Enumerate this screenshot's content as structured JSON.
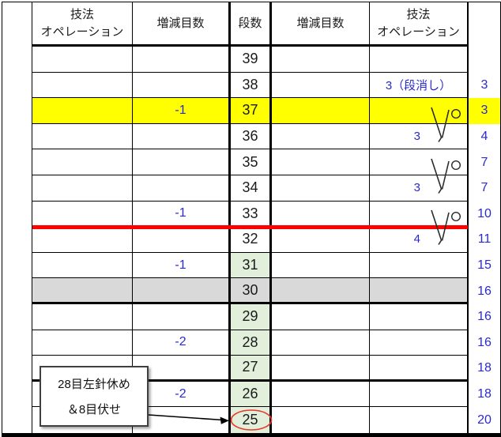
{
  "table": {
    "headers": {
      "technique_left_line1": "技法",
      "technique_left_line2": "オペレーション",
      "decrease_left": "増減目数",
      "row_count": "段数",
      "decrease_right": "増減目数",
      "technique_right_line1": "技法",
      "technique_right_line2": "オペレーション"
    },
    "rows": [
      {
        "row_no": "39",
        "dec_left": "",
        "dec_right": "",
        "technique_right": "",
        "count_right": "",
        "row_bg": "",
        "rowno_bg": "",
        "thick_bottom": false,
        "tech_align": "center",
        "circled": false
      },
      {
        "row_no": "38",
        "dec_left": "",
        "dec_right": "",
        "technique_right": "3（段消し）",
        "count_right": "3",
        "row_bg": "",
        "rowno_bg": "",
        "thick_bottom": false,
        "tech_align": "center",
        "circled": false
      },
      {
        "row_no": "37",
        "dec_left": "-1",
        "dec_right": "",
        "technique_right": "",
        "count_right": "3",
        "row_bg": "yellow",
        "rowno_bg": "",
        "thick_bottom": false,
        "tech_align": "center",
        "circled": false
      },
      {
        "row_no": "36",
        "dec_left": "",
        "dec_right": "",
        "technique_right": "3",
        "count_right": "4",
        "row_bg": "",
        "rowno_bg": "",
        "thick_bottom": false,
        "tech_align": "right",
        "circled": false
      },
      {
        "row_no": "35",
        "dec_left": "",
        "dec_right": "",
        "technique_right": "",
        "count_right": "7",
        "row_bg": "",
        "rowno_bg": "",
        "thick_bottom": false,
        "tech_align": "center",
        "circled": false
      },
      {
        "row_no": "34",
        "dec_left": "",
        "dec_right": "",
        "technique_right": "3",
        "count_right": "7",
        "row_bg": "",
        "rowno_bg": "",
        "thick_bottom": false,
        "tech_align": "right",
        "circled": false
      },
      {
        "row_no": "33",
        "dec_left": "-1",
        "dec_right": "",
        "technique_right": "",
        "count_right": "10",
        "row_bg": "",
        "rowno_bg": "",
        "thick_bottom": false,
        "tech_align": "center",
        "circled": false
      },
      {
        "row_no": "32",
        "dec_left": "",
        "dec_right": "",
        "technique_right": "4",
        "count_right": "11",
        "row_bg": "",
        "rowno_bg": "",
        "thick_bottom": false,
        "tech_align": "right",
        "circled": false
      },
      {
        "row_no": "31",
        "dec_left": "-1",
        "dec_right": "",
        "technique_right": "",
        "count_right": "15",
        "row_bg": "",
        "rowno_bg": "green",
        "thick_bottom": false,
        "tech_align": "center",
        "circled": false
      },
      {
        "row_no": "30",
        "dec_left": "",
        "dec_right": "",
        "technique_right": "",
        "count_right": "16",
        "row_bg": "gray",
        "rowno_bg": "gray",
        "thick_bottom": true,
        "tech_align": "center",
        "circled": false
      },
      {
        "row_no": "29",
        "dec_left": "",
        "dec_right": "",
        "technique_right": "",
        "count_right": "16",
        "row_bg": "",
        "rowno_bg": "green",
        "thick_bottom": false,
        "tech_align": "center",
        "circled": false
      },
      {
        "row_no": "28",
        "dec_left": "-2",
        "dec_right": "",
        "technique_right": "",
        "count_right": "16",
        "row_bg": "",
        "rowno_bg": "green",
        "thick_bottom": false,
        "tech_align": "center",
        "circled": false
      },
      {
        "row_no": "27",
        "dec_left": "",
        "dec_right": "",
        "technique_right": "",
        "count_right": "18",
        "row_bg": "",
        "rowno_bg": "green",
        "thick_bottom": true,
        "tech_align": "center",
        "circled": false
      },
      {
        "row_no": "26",
        "dec_left": "-2",
        "dec_right": "",
        "technique_right": "",
        "count_right": "18",
        "row_bg": "",
        "rowno_bg": "green",
        "thick_bottom": false,
        "tech_align": "center",
        "circled": false
      },
      {
        "row_no": "25",
        "dec_left": "",
        "dec_right": "",
        "technique_right": "",
        "count_right": "20",
        "row_bg": "",
        "rowno_bg": "green",
        "thick_bottom": false,
        "tech_align": "center",
        "circled": true
      }
    ]
  },
  "symbols": [
    {
      "name": "decrease-yarnover-symbol",
      "between_rows": "37-36"
    },
    {
      "name": "decrease-yarnover-symbol",
      "between_rows": "35-34"
    },
    {
      "name": "decrease-yarnover-symbol",
      "between_rows": "33-32"
    }
  ],
  "callout": {
    "line1": "28目左針休め",
    "line2": "＆8目伏せ"
  },
  "colors": {
    "highlight_yellow": "#ffff00",
    "row_gray": "#d9d9d9",
    "cell_green": "#e2efda",
    "blue_text": "#2a2acd",
    "red_line": "#fe0000",
    "red_ellipse": "#e8392b"
  }
}
